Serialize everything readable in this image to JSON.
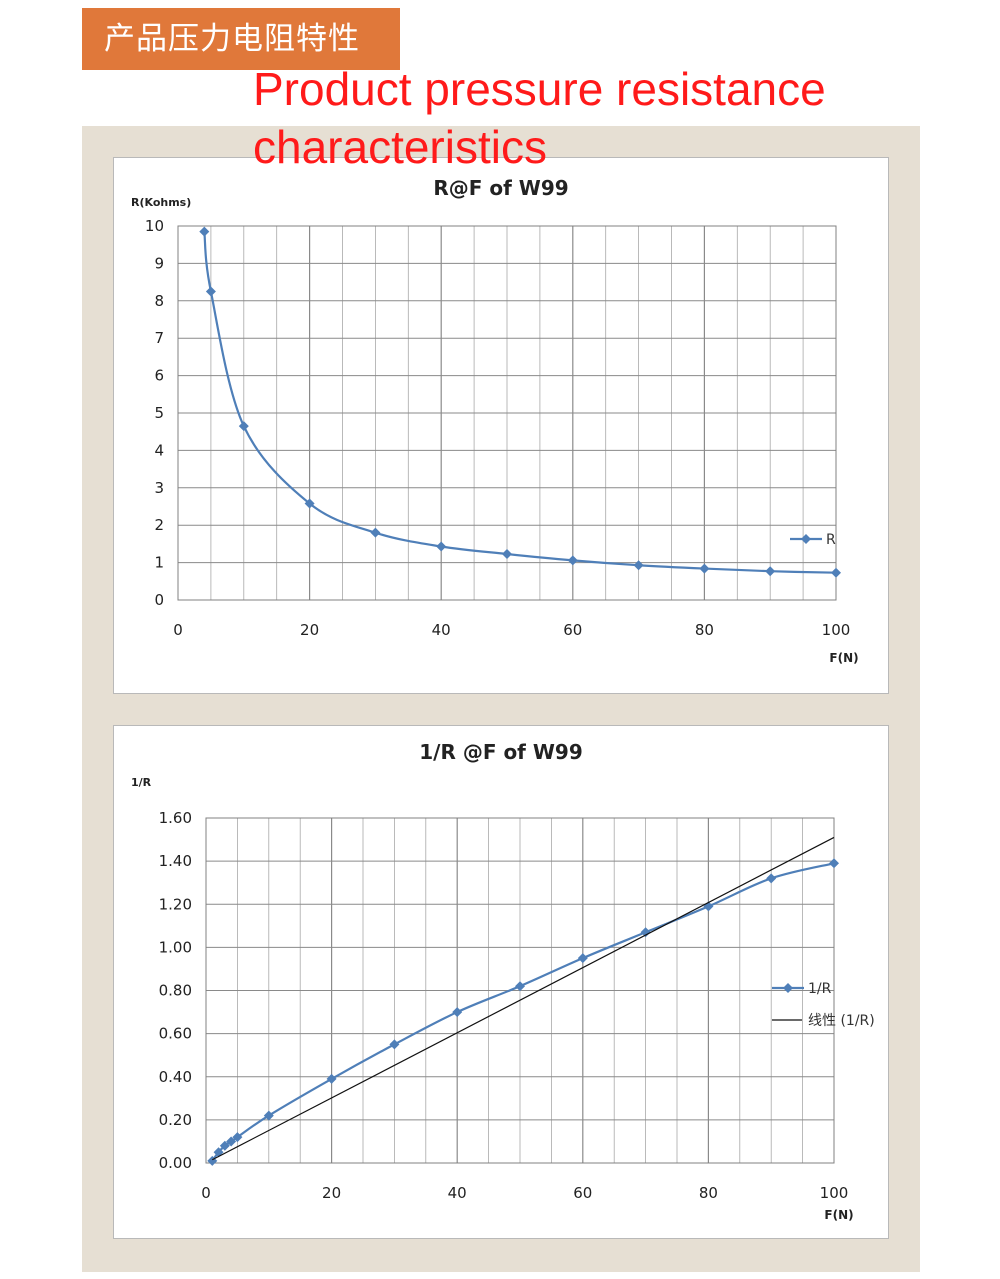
{
  "header": {
    "banner_text": "产品压力电阻特性",
    "title_en": "Product pressure resistance characteristics"
  },
  "colors": {
    "banner_bg": "#e0783a",
    "title_red": "#ff1a1a",
    "series_blue": "#4f7fb8",
    "panel_bg": "#e6dfd3"
  },
  "chart_data": [
    {
      "type": "line",
      "title": "R@F of  W99",
      "xlabel": "F(N)",
      "ylabel": "R(Kohms)",
      "xlim": [
        0,
        100
      ],
      "ylim": [
        0,
        10
      ],
      "x_ticks": [
        0,
        20,
        40,
        60,
        80,
        100
      ],
      "y_ticks": [
        "0",
        "1",
        "2",
        "3",
        "4",
        "5",
        "6",
        "7",
        "8",
        "9",
        "10"
      ],
      "grid": true,
      "legend": "right",
      "series": [
        {
          "name": "R",
          "marker": "diamond",
          "x": [
            4,
            5,
            10,
            20,
            30,
            40,
            50,
            60,
            70,
            80,
            90,
            100
          ],
          "y": [
            9.85,
            8.25,
            4.65,
            2.58,
            1.8,
            1.43,
            1.23,
            1.06,
            0.93,
            0.84,
            0.77,
            0.73
          ]
        }
      ]
    },
    {
      "type": "line",
      "title": "1/R @F of  W99",
      "xlabel": "F(N)",
      "ylabel": "1/R",
      "xlim": [
        0,
        100
      ],
      "ylim": [
        0,
        1.6
      ],
      "x_ticks": [
        0,
        20,
        40,
        60,
        80,
        100
      ],
      "y_ticks": [
        "0.00",
        "0.20",
        "0.40",
        "0.60",
        "0.80",
        "1.00",
        "1.20",
        "1.40",
        "1.60"
      ],
      "grid": true,
      "legend": "right",
      "series": [
        {
          "name": "1/R",
          "marker": "diamond",
          "x": [
            1,
            2,
            3,
            4,
            5,
            10,
            20,
            30,
            40,
            50,
            60,
            70,
            80,
            90,
            100
          ],
          "y": [
            0.01,
            0.05,
            0.08,
            0.1,
            0.12,
            0.22,
            0.39,
            0.55,
            0.7,
            0.82,
            0.95,
            1.07,
            1.19,
            1.32,
            1.39
          ]
        },
        {
          "name": "线性 (1/R)",
          "style": "trendline",
          "x": [
            1,
            100
          ],
          "y": [
            0.015,
            1.51
          ]
        }
      ]
    }
  ]
}
